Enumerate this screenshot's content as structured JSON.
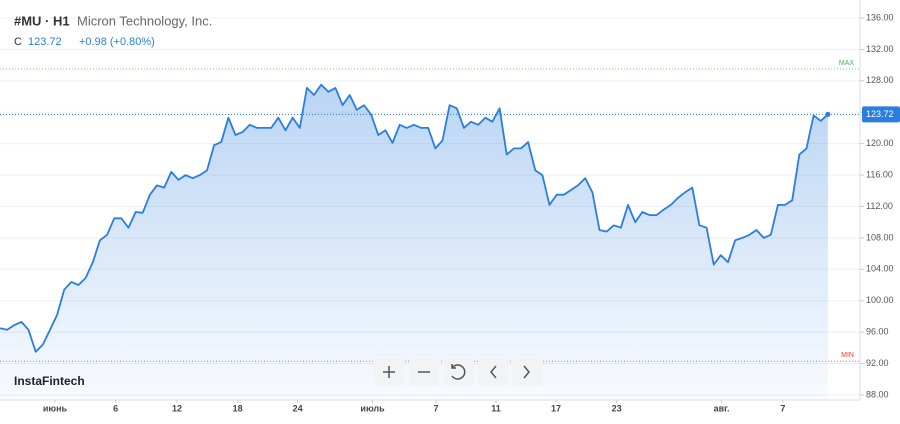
{
  "chart_data": {
    "type": "area",
    "symbol": "#MU · H1",
    "company": "Micron Technology, Inc.",
    "close_prefix": "C",
    "change": "+0.98 (+0.80%)",
    "brand": "InstaFintech",
    "color": "#2b7de0",
    "grid": true,
    "max_line": {
      "label": "MAX",
      "value": 129.5,
      "color": "#4caf50"
    },
    "min_line": {
      "label": "MIN",
      "value": 92.3,
      "color": "#e53935"
    },
    "values": [
      96.5,
      96.3,
      96.9,
      97.3,
      96.3,
      93.5,
      94.4,
      96.3,
      98.2,
      101.4,
      102.4,
      102.0,
      102.9,
      104.9,
      107.7,
      108.4,
      110.5,
      110.5,
      109.3,
      111.3,
      111.2,
      113.5,
      114.7,
      114.4,
      116.4,
      115.4,
      116.0,
      115.6,
      116.0,
      116.6,
      119.8,
      120.2,
      123.3,
      121.1,
      121.5,
      122.4,
      122.0,
      122.0,
      122.0,
      123.3,
      121.7,
      123.3,
      122.0,
      127.1,
      126.2,
      127.5,
      126.6,
      127.1,
      124.9,
      126.2,
      124.3,
      124.9,
      123.7,
      121.1,
      121.7,
      120.1,
      122.4,
      122.0,
      122.4,
      122.0,
      122.0,
      119.4,
      120.4,
      124.9,
      124.5,
      122.0,
      122.8,
      122.4,
      123.3,
      122.8,
      124.5,
      118.6,
      119.4,
      119.4,
      120.2,
      116.6,
      116.0,
      112.2,
      113.5,
      113.5,
      114.1,
      114.7,
      115.6,
      113.8,
      109.0,
      108.8,
      109.6,
      109.3,
      112.2,
      110.0,
      111.3,
      110.9,
      110.9,
      111.6,
      112.2,
      113.1,
      113.8,
      114.4,
      109.6,
      109.3,
      104.6,
      105.8,
      104.9,
      107.7,
      108.0,
      108.4,
      109.0,
      108.0,
      108.4,
      112.2,
      112.2,
      112.8,
      118.6,
      119.4,
      123.6,
      122.9,
      123.72
    ],
    "xlim": [
      0,
      120.5
    ],
    "xticks": [
      {
        "value": 7.7,
        "label": "июнь"
      },
      {
        "value": 16.2,
        "label": "6"
      },
      {
        "value": 24.8,
        "label": "12"
      },
      {
        "value": 33.3,
        "label": "18"
      },
      {
        "value": 41.7,
        "label": "24"
      },
      {
        "value": 52.2,
        "label": "июль"
      },
      {
        "value": 61.1,
        "label": "7"
      },
      {
        "value": 69.5,
        "label": "11"
      },
      {
        "value": 77.9,
        "label": "17"
      },
      {
        "value": 86.4,
        "label": "23"
      },
      {
        "value": 101.1,
        "label": "авг."
      },
      {
        "value": 109.7,
        "label": "7"
      }
    ],
    "ylim": [
      87.36,
      138.29
    ],
    "yticks": [
      {
        "value": 88,
        "label": "88.00"
      },
      {
        "value": 92,
        "label": "92.00"
      },
      {
        "value": 96,
        "label": "96.00"
      },
      {
        "value": 100,
        "label": "100.00"
      },
      {
        "value": 104,
        "label": "104.00"
      },
      {
        "value": 108,
        "label": "108.00"
      },
      {
        "value": 112,
        "label": "112.00"
      },
      {
        "value": 116,
        "label": "116.00"
      },
      {
        "value": 120,
        "label": "120.00"
      },
      {
        "value": 124,
        "label": "124.00"
      },
      {
        "value": 128,
        "label": "128.00"
      },
      {
        "value": 132,
        "label": "132.00"
      },
      {
        "value": 136,
        "label": "136.00"
      }
    ]
  }
}
